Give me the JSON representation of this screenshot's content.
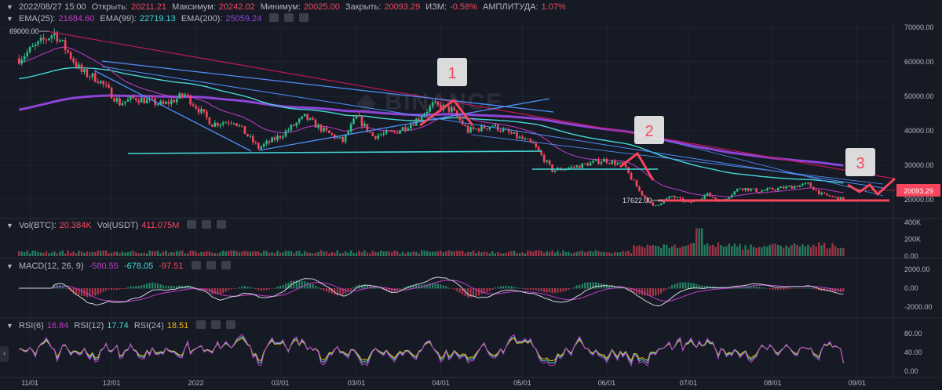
{
  "header": {
    "date": "2022/08/27 15:00",
    "open_label": "Открыть:",
    "open": "20211.21",
    "high_label": "Максимум:",
    "high": "20242.02",
    "low_label": "Минимум:",
    "low": "20025.00",
    "close_label": "Закрыть:",
    "close": "20093.29",
    "change_label": "ИЗМ:",
    "change": "-0.58%",
    "amp_label": "АМПЛИТУДА:",
    "amp": "1.07%"
  },
  "ema_legend": {
    "ema25_label": "EMA(25):",
    "ema25": "21684.60",
    "ema99_label": "EMA(99):",
    "ema99": "22719.13",
    "ema200_label": "EMA(200):",
    "ema200": "25059.24"
  },
  "vol_legend": {
    "btc_label": "Vol(BTC):",
    "btc": "20.384K",
    "usdt_label": "Vol(USDT)",
    "usdt": "411.075M"
  },
  "macd_legend": {
    "label": "MACD(12, 26, 9)",
    "v1": "-580.55",
    "v2": "-678.05",
    "v3": "-97.51"
  },
  "rsi_legend": {
    "rsi6_label": "RSI(6)",
    "rsi6": "16.84",
    "rsi12_label": "RSI(12)",
    "rsi12": "17.74",
    "rsi24_label": "RSI(24)",
    "rsi24": "18.51"
  },
  "side_tab": "›",
  "colors": {
    "up": "#2ebd85",
    "down": "#f6465d",
    "ema25": "#c23cc7",
    "ema99": "#45d6d6",
    "ema200": "#8e44d8",
    "rsi24": "#f0b90b",
    "trend_blue": "#4f8ff7",
    "support": "#45d6d6",
    "annotation": "#f6465d",
    "resistance": "#c2185b"
  },
  "chart_data": {
    "type": "candlestick",
    "price_axis": {
      "ticks": [
        "70000.00",
        "60000.00",
        "50000.00",
        "40000.00",
        "30000.00",
        "20000.00"
      ]
    },
    "high_label": "69000.00",
    "low_label": "17622.00",
    "last_price": "20093.29",
    "time_axis": [
      "11/01",
      "12/01",
      "2022",
      "02/01",
      "03/01",
      "04/01",
      "05/01",
      "06/01",
      "07/01",
      "08/01",
      "09/01"
    ],
    "volume_axis": [
      "400K",
      "200K",
      "0.00"
    ],
    "macd_axis": [
      "2000.00",
      "0.00",
      "-2000.00"
    ],
    "rsi_axis": [
      "80.00",
      "40.00",
      "0.00"
    ],
    "annotations": [
      "1",
      "2",
      "3"
    ],
    "price_path": [
      [
        "2021-10-28",
        61000
      ],
      [
        "2021-11-10",
        68500
      ],
      [
        "2021-11-20",
        57000
      ],
      [
        "2021-11-26",
        55000
      ],
      [
        "2021-12-04",
        48000
      ],
      [
        "2021-12-10",
        49500
      ],
      [
        "2021-12-20",
        47500
      ],
      [
        "2021-12-28",
        50500
      ],
      [
        "2022-01-07",
        42000
      ],
      [
        "2022-01-15",
        43000
      ],
      [
        "2022-01-24",
        35000
      ],
      [
        "2022-02-01",
        38500
      ],
      [
        "2022-02-10",
        44000
      ],
      [
        "2022-02-17",
        40000
      ],
      [
        "2022-02-24",
        37000
      ],
      [
        "2022-03-01",
        44000
      ],
      [
        "2022-03-07",
        38500
      ],
      [
        "2022-03-15",
        39500
      ],
      [
        "2022-03-22",
        42500
      ],
      [
        "2022-03-29",
        47500
      ],
      [
        "2022-04-05",
        46000
      ],
      [
        "2022-04-11",
        40000
      ],
      [
        "2022-04-20",
        41500
      ],
      [
        "2022-04-27",
        39000
      ],
      [
        "2022-05-05",
        36000
      ],
      [
        "2022-05-12",
        28500
      ],
      [
        "2022-05-20",
        29500
      ],
      [
        "2022-05-31",
        31500
      ],
      [
        "2022-06-07",
        30000
      ],
      [
        "2022-06-13",
        22500
      ],
      [
        "2022-06-18",
        18000
      ],
      [
        "2022-06-25",
        21000
      ],
      [
        "2022-07-01",
        19000
      ],
      [
        "2022-07-08",
        21500
      ],
      [
        "2022-07-13",
        19500
      ],
      [
        "2022-07-20",
        23500
      ],
      [
        "2022-07-27",
        22500
      ],
      [
        "2022-08-01",
        23000
      ],
      [
        "2022-08-14",
        24500
      ],
      [
        "2022-08-19",
        21500
      ],
      [
        "2022-08-27",
        20093
      ]
    ]
  }
}
